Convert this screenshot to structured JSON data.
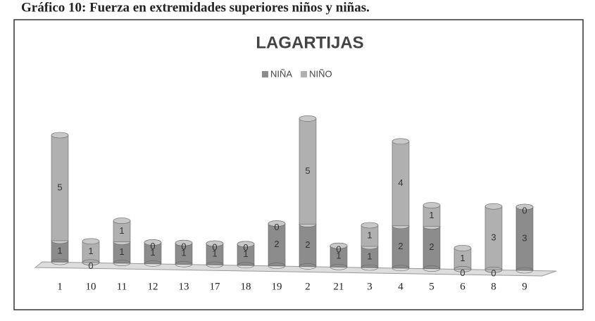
{
  "chart_data": {
    "type": "bar",
    "stacked": true,
    "caption": "Gráfico 10: Fuerza en extremidades superiores niños y niñas.",
    "title": "LAGARTIJAS",
    "categories": [
      "1",
      "10",
      "11",
      "12",
      "13",
      "17",
      "18",
      "19",
      "2",
      "21",
      "3",
      "4",
      "5",
      "6",
      "8",
      "9"
    ],
    "series": [
      {
        "name": "NIÑA",
        "color": "#8c8c8c",
        "values": [
          1,
          0,
          1,
          1,
          1,
          1,
          1,
          2,
          2,
          1,
          1,
          2,
          2,
          0,
          0,
          3
        ]
      },
      {
        "name": "NIÑO",
        "color": "#b0b0b0",
        "values": [
          5,
          1,
          1,
          0,
          0,
          0,
          0,
          0,
          5,
          0,
          1,
          4,
          1,
          1,
          3,
          0
        ]
      }
    ],
    "legend": "top"
  }
}
